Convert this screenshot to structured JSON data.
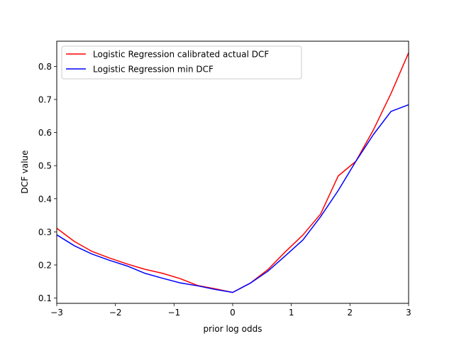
{
  "chart_data": {
    "type": "line",
    "title": "",
    "xlabel": "prior log odds",
    "ylabel": "DCF value",
    "xlim": [
      -3,
      3
    ],
    "ylim": [
      0.084,
      0.876
    ],
    "xticks": [
      -3,
      -2,
      -1,
      0,
      1,
      2,
      3
    ],
    "xtick_labels": [
      "−3",
      "−2",
      "−1",
      "0",
      "1",
      "2",
      "3"
    ],
    "yticks": [
      0.1,
      0.2,
      0.3,
      0.4,
      0.5,
      0.6,
      0.7,
      0.8
    ],
    "ytick_labels": [
      "0.1",
      "0.2",
      "0.3",
      "0.4",
      "0.5",
      "0.6",
      "0.7",
      "0.8"
    ],
    "grid": false,
    "legend_position": "top-left",
    "x": [
      -3.0,
      -2.7,
      -2.4,
      -2.1,
      -1.8,
      -1.5,
      -1.2,
      -0.9,
      -0.6,
      -0.3,
      0.0,
      0.3,
      0.6,
      0.9,
      1.2,
      1.5,
      1.8,
      2.1,
      2.4,
      2.7,
      3.0
    ],
    "series": [
      {
        "name": "Logistic Regression calibrated actual DCF",
        "color": "#ff0000",
        "values": [
          0.311,
          0.271,
          0.241,
          0.221,
          0.203,
          0.187,
          0.175,
          0.159,
          0.138,
          0.128,
          0.117,
          0.145,
          0.186,
          0.24,
          0.291,
          0.354,
          0.469,
          0.513,
          0.608,
          0.718,
          0.841
        ]
      },
      {
        "name": "Logistic Regression min DCF",
        "color": "#0000ff",
        "values": [
          0.291,
          0.258,
          0.233,
          0.214,
          0.197,
          0.175,
          0.16,
          0.146,
          0.137,
          0.126,
          0.117,
          0.145,
          0.181,
          0.228,
          0.276,
          0.346,
          0.425,
          0.513,
          0.594,
          0.664,
          0.684
        ]
      }
    ]
  }
}
